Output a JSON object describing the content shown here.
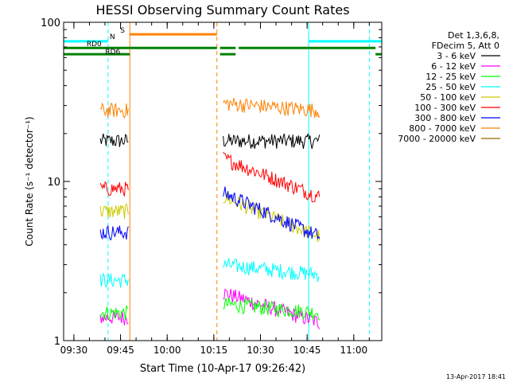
{
  "chart_data": {
    "type": "line",
    "title": "HESSI Observing Summary Count Rates",
    "xlabel": "Start Time (10-Apr-17 09:26:42)",
    "ylabel": "Count Rate (s⁻¹ detector⁻¹)",
    "y_scale": "log",
    "ylim": [
      1,
      100
    ],
    "xlim": [
      "09:26:42",
      "11:09:00"
    ],
    "x_ticks": [
      "09:30",
      "09:45",
      "10:00",
      "10:15",
      "10:30",
      "10:45",
      "11:00"
    ],
    "y_ticks": [
      "1",
      "10",
      "100"
    ],
    "legend": {
      "placement": "right",
      "header": [
        "Det 1,3,6,8,",
        "FDecim 5, Att 0"
      ]
    },
    "series": [
      {
        "name": "3 - 6 keV",
        "color": "#000000",
        "segments": [
          {
            "x": [
              "09:38:30",
              "09:47:30"
            ],
            "y": [
              18,
              18
            ]
          },
          {
            "x": [
              "10:18:00",
              "10:49:00"
            ],
            "y": [
              18,
              18
            ]
          }
        ]
      },
      {
        "name": "6 - 12 keV",
        "color": "#ff00ff",
        "segments": [
          {
            "x": [
              "09:38:30",
              "09:47:30"
            ],
            "y": [
              1.4,
              1.4
            ]
          },
          {
            "x": [
              "10:18:00",
              "10:49:00"
            ],
            "y": [
              2.0,
              1.3
            ]
          }
        ]
      },
      {
        "name": "12 - 25 keV",
        "color": "#00ff00",
        "segments": [
          {
            "x": [
              "09:38:30",
              "09:47:30"
            ],
            "y": [
              1.5,
              1.5
            ]
          },
          {
            "x": [
              "10:18:00",
              "10:49:00"
            ],
            "y": [
              1.7,
              1.5
            ]
          }
        ]
      },
      {
        "name": "25 - 50 keV",
        "color": "#00ffff",
        "segments": [
          {
            "x": [
              "09:38:30",
              "09:47:30"
            ],
            "y": [
              2.4,
              2.4
            ]
          },
          {
            "x": [
              "10:18:00",
              "10:49:00"
            ],
            "y": [
              3.0,
              2.6
            ]
          }
        ]
      },
      {
        "name": "50 - 100 keV",
        "color": "#cccc00",
        "segments": [
          {
            "x": [
              "09:38:30",
              "09:47:30"
            ],
            "y": [
              6.5,
              6.5
            ]
          },
          {
            "x": [
              "10:18:00",
              "10:49:00"
            ],
            "y": [
              8.0,
              4.5
            ]
          }
        ]
      },
      {
        "name": "100 - 300 keV",
        "color": "#ff0000",
        "segments": [
          {
            "x": [
              "09:38:30",
              "09:47:30"
            ],
            "y": [
              9.0,
              9.0
            ]
          },
          {
            "x": [
              "10:18:00",
              "10:49:00"
            ],
            "y": [
              14.0,
              8.0
            ]
          }
        ]
      },
      {
        "name": "300 - 800 keV",
        "color": "#0000ff",
        "segments": [
          {
            "x": [
              "09:38:30",
              "09:47:30"
            ],
            "y": [
              4.8,
              4.8
            ]
          },
          {
            "x": [
              "10:18:00",
              "10:49:00"
            ],
            "y": [
              8.5,
              4.5
            ]
          }
        ]
      },
      {
        "name": "800 - 7000 keV",
        "color": "#ff8000",
        "segments": [
          {
            "x": [
              "09:38:30",
              "09:47:30"
            ],
            "y": [
              28,
              28
            ]
          },
          {
            "x": [
              "10:18:00",
              "10:49:00"
            ],
            "y": [
              31,
              28
            ]
          }
        ]
      },
      {
        "name": "7000 - 20000 keV",
        "color": "#996600",
        "segments": []
      }
    ],
    "flag_bars": [
      {
        "label": "N",
        "color": "#00ffff",
        "y": 76,
        "segments": [
          {
            "x": [
              "09:26:42",
              "09:41:00"
            ]
          },
          {
            "x": [
              "10:45:30",
              "11:09:00"
            ]
          }
        ]
      },
      {
        "label": "S",
        "color": "#ff8000",
        "y": 84,
        "segments": [
          {
            "x": [
              "09:48:00",
              "10:16:00"
            ]
          }
        ]
      },
      {
        "label": "RD0",
        "color": "#008000",
        "y": 69,
        "segments": [
          {
            "x": [
              "09:26:42",
              "09:48:00"
            ]
          },
          {
            "x": [
              "09:48:00",
              "10:16:00"
            ]
          },
          {
            "x": [
              "10:17:00",
              "10:22:00"
            ]
          },
          {
            "x": [
              "10:23:00",
              "11:07:00"
            ]
          }
        ]
      },
      {
        "label": "RD6",
        "color": "#008000",
        "y": 63,
        "segments": [
          {
            "x": [
              "09:26:42",
              "09:48:00"
            ]
          },
          {
            "x": [
              "10:17:00",
              "10:22:00"
            ]
          },
          {
            "x": [
              "11:07:00",
              "11:09:00"
            ]
          }
        ]
      }
    ],
    "vertical_markers": [
      {
        "x": "09:26:42",
        "color": "#00ffff",
        "style": "solid"
      },
      {
        "x": "09:41:00",
        "color": "#00ffff",
        "style": "dashed"
      },
      {
        "x": "09:48:00",
        "color": "#ff8000",
        "style": "solid"
      },
      {
        "x": "10:16:00",
        "color": "#ff8000",
        "style": "dashed"
      },
      {
        "x": "10:45:30",
        "color": "#00ffff",
        "style": "solid"
      },
      {
        "x": "11:05:00",
        "color": "#00ffff",
        "style": "dashed"
      }
    ],
    "timestamp": "13-Apr-2017 18:41"
  }
}
